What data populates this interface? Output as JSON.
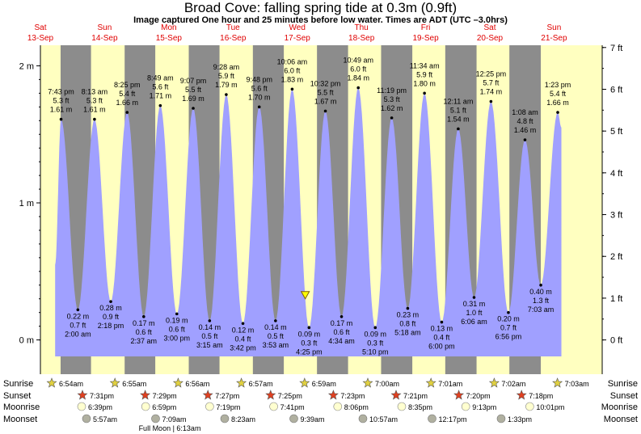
{
  "header": {
    "title": "Broad Cove: falling  spring tide at 0.3m (0.9ft)",
    "subtitle": "Image captured One hour and 25 minutes before low water. Times are ADT (UTC –3.0hrs)"
  },
  "colors": {
    "night": "#8c8c8c",
    "day": "#ffffc0",
    "water": "#a0a0ff",
    "day_label": "#e00000",
    "sun_star": "#e0d040",
    "sunset_star": "#e04020",
    "moonrise": "#ffffd0",
    "moonset": "#b0b0a0"
  },
  "chart_data": {
    "type": "area",
    "ylabel_left": "m",
    "ylabel_right": "ft",
    "ylim": [
      -0.25,
      2.15
    ],
    "left_ticks": [
      "2 m",
      "1 m",
      "0 m"
    ],
    "right_ticks": [
      "7 ft",
      "6 ft",
      "5 ft",
      "4 ft",
      "3 ft",
      "2 ft",
      "1 ft",
      "0 ft"
    ],
    "days": [
      {
        "dow": "Sat",
        "date": "13-Sep"
      },
      {
        "dow": "Sun",
        "date": "14-Sep"
      },
      {
        "dow": "Mon",
        "date": "15-Sep"
      },
      {
        "dow": "Tue",
        "date": "16-Sep"
      },
      {
        "dow": "Wed",
        "date": "17-Sep"
      },
      {
        "dow": "Thu",
        "date": "18-Sep"
      },
      {
        "dow": "Fri",
        "date": "19-Sep"
      },
      {
        "dow": "Sat",
        "date": "20-Sep"
      },
      {
        "dow": "Sun",
        "date": "21-Sep"
      }
    ],
    "tides": [
      {
        "type": "high",
        "day": "13-Sep",
        "time": "7:43 pm",
        "m": 1.61,
        "ft": "5.3 ft",
        "m_label": "1.61 m"
      },
      {
        "type": "low",
        "day": "14-Sep",
        "time": "2:00 am",
        "m": 0.22,
        "ft": "0.7 ft",
        "m_label": "0.22 m"
      },
      {
        "type": "high",
        "day": "14-Sep",
        "time": "8:13 am",
        "m": 1.61,
        "ft": "5.3 ft",
        "m_label": "1.61 m"
      },
      {
        "type": "low",
        "day": "14-Sep",
        "time": "2:18 pm",
        "m": 0.28,
        "ft": "0.9 ft",
        "m_label": "0.28 m"
      },
      {
        "type": "high",
        "day": "14-Sep",
        "time": "8:25 pm",
        "m": 1.66,
        "ft": "5.4 ft",
        "m_label": "1.66 m"
      },
      {
        "type": "low",
        "day": "15-Sep",
        "time": "2:37 am",
        "m": 0.17,
        "ft": "0.6 ft",
        "m_label": "0.17 m"
      },
      {
        "type": "high",
        "day": "15-Sep",
        "time": "8:49 am",
        "m": 1.71,
        "ft": "5.6 ft",
        "m_label": "1.71 m"
      },
      {
        "type": "low",
        "day": "15-Sep",
        "time": "3:00 pm",
        "m": 0.19,
        "ft": "0.6 ft",
        "m_label": "0.19 m"
      },
      {
        "type": "high",
        "day": "15-Sep",
        "time": "9:07 pm",
        "m": 1.69,
        "ft": "5.5 ft",
        "m_label": "1.69 m"
      },
      {
        "type": "low",
        "day": "16-Sep",
        "time": "3:15 am",
        "m": 0.14,
        "ft": "0.5 ft",
        "m_label": "0.14 m"
      },
      {
        "type": "high",
        "day": "16-Sep",
        "time": "9:28 am",
        "m": 1.79,
        "ft": "5.9 ft",
        "m_label": "1.79 m"
      },
      {
        "type": "low",
        "day": "16-Sep",
        "time": "3:42 pm",
        "m": 0.12,
        "ft": "0.4 ft",
        "m_label": "0.12 m"
      },
      {
        "type": "high",
        "day": "16-Sep",
        "time": "9:48 pm",
        "m": 1.7,
        "ft": "5.6 ft",
        "m_label": "1.70 m"
      },
      {
        "type": "low",
        "day": "17-Sep",
        "time": "3:53 am",
        "m": 0.14,
        "ft": "0.5 ft",
        "m_label": "0.14 m"
      },
      {
        "type": "high",
        "day": "17-Sep",
        "time": "10:06 am",
        "m": 1.83,
        "ft": "6.0 ft",
        "m_label": "1.83 m"
      },
      {
        "type": "low",
        "day": "17-Sep",
        "time": "4:25 pm",
        "m": 0.09,
        "ft": "0.3 ft",
        "m_label": "0.09 m"
      },
      {
        "type": "high",
        "day": "17-Sep",
        "time": "10:32 pm",
        "m": 1.67,
        "ft": "5.5 ft",
        "m_label": "1.67 m"
      },
      {
        "type": "low",
        "day": "18-Sep",
        "time": "4:34 am",
        "m": 0.17,
        "ft": "0.6 ft",
        "m_label": "0.17 m"
      },
      {
        "type": "high",
        "day": "18-Sep",
        "time": "10:49 am",
        "m": 1.84,
        "ft": "6.0 ft",
        "m_label": "1.84 m"
      },
      {
        "type": "low",
        "day": "18-Sep",
        "time": "5:10 pm",
        "m": 0.09,
        "ft": "0.3 ft",
        "m_label": "0.09 m"
      },
      {
        "type": "high",
        "day": "18-Sep",
        "time": "11:19 pm",
        "m": 1.62,
        "ft": "5.3 ft",
        "m_label": "1.62 m"
      },
      {
        "type": "low",
        "day": "19-Sep",
        "time": "5:18 am",
        "m": 0.23,
        "ft": "0.8 ft",
        "m_label": "0.23 m"
      },
      {
        "type": "high",
        "day": "19-Sep",
        "time": "11:34 am",
        "m": 1.8,
        "ft": "5.9 ft",
        "m_label": "1.80 m"
      },
      {
        "type": "low",
        "day": "19-Sep",
        "time": "6:00 pm",
        "m": 0.13,
        "ft": "0.4 ft",
        "m_label": "0.13 m"
      },
      {
        "type": "low",
        "day": "20-Sep",
        "time": "6:06 am",
        "m": 0.31,
        "ft": "1.0 ft",
        "m_label": "0.31 m"
      },
      {
        "type": "high",
        "day": "20-Sep",
        "time": "12:11 am",
        "m": 1.54,
        "ft": "5.1 ft",
        "m_label": "1.54 m"
      },
      {
        "type": "high",
        "day": "20-Sep",
        "time": "12:25 pm",
        "m": 1.74,
        "ft": "5.7 ft",
        "m_label": "1.74 m"
      },
      {
        "type": "low",
        "day": "20-Sep",
        "time": "6:56 pm",
        "m": 0.2,
        "ft": "0.7 ft",
        "m_label": "0.20 m"
      },
      {
        "type": "high",
        "day": "21-Sep",
        "time": "1:08 am",
        "m": 1.46,
        "ft": "4.8 ft",
        "m_label": "1.46 m"
      },
      {
        "type": "low",
        "day": "21-Sep",
        "time": "7:03 am",
        "m": 0.4,
        "ft": "1.3 ft",
        "m_label": "0.40 m"
      },
      {
        "type": "high",
        "day": "21-Sep",
        "time": "1:23 pm",
        "m": 1.66,
        "ft": "5.4 ft",
        "m_label": "1.66 m"
      }
    ],
    "current_marker": {
      "m": 0.3,
      "label": "falling"
    }
  },
  "footer": {
    "rows": [
      {
        "key": "sunrise",
        "label": "Sunrise",
        "right_label": "Sunrise"
      },
      {
        "key": "sunset",
        "label": "Sunset",
        "right_label": "Sunset"
      },
      {
        "key": "moonrise",
        "label": "Moonrise",
        "right_label": "Moonrise"
      },
      {
        "key": "moonset",
        "label": "Moonset",
        "right_label": "Moonset"
      }
    ],
    "sunrise": [
      "6:54am",
      "6:55am",
      "6:56am",
      "6:57am",
      "6:59am",
      "7:00am",
      "7:01am",
      "7:02am",
      "7:03am"
    ],
    "sunset": [
      "7:31pm",
      "7:29pm",
      "7:27pm",
      "7:25pm",
      "7:23pm",
      "7:21pm",
      "7:20pm",
      "7:18pm"
    ],
    "moonrise": [
      "6:39pm",
      "6:59pm",
      "7:19pm",
      "7:41pm",
      "8:06pm",
      "8:35pm",
      "9:13pm",
      "10:01pm"
    ],
    "moonset": [
      "5:57am",
      "7:09am",
      "8:23am",
      "9:39am",
      "10:57am",
      "12:17pm",
      "1:33pm"
    ],
    "full_moon": "Full Moon | 6:13am"
  }
}
